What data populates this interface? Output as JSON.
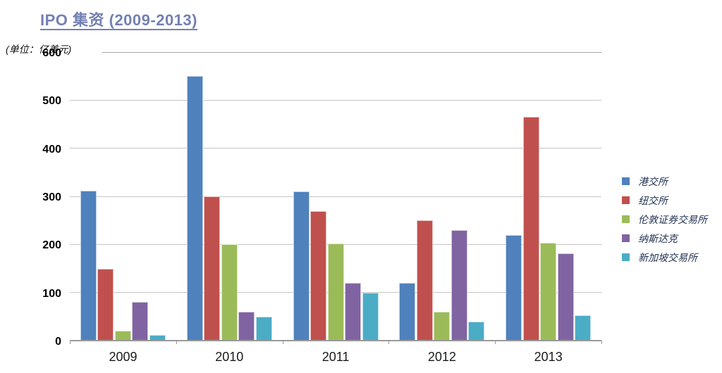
{
  "title": "IPO 集资 (2009-2013)",
  "unit_label": "(单位：亿美元)",
  "chart_data": {
    "type": "bar",
    "title": "IPO 集资 (2009-2013)",
    "unit": "亿美元",
    "categories": [
      "2009",
      "2010",
      "2011",
      "2012",
      "2013"
    ],
    "series": [
      {
        "name": "港交所",
        "color": "#4F81BD",
        "values": [
          312,
          550,
          310,
          120,
          220
        ]
      },
      {
        "name": "纽交所",
        "color": "#C0504D",
        "values": [
          150,
          300,
          270,
          250,
          466
        ]
      },
      {
        "name": "伦敦证券交易所",
        "color": "#9BBB59",
        "values": [
          20,
          200,
          202,
          60,
          203
        ]
      },
      {
        "name": "纳斯达克",
        "color": "#8064A2",
        "values": [
          80,
          60,
          120,
          230,
          182
        ]
      },
      {
        "name": "新加坡交易所",
        "color": "#4BACC6",
        "values": [
          11,
          50,
          100,
          40,
          52
        ]
      }
    ],
    "ylim": [
      0,
      600
    ],
    "ytick_step": 100,
    "yticks": [
      0,
      100,
      200,
      300,
      400,
      500,
      600
    ],
    "grid": true,
    "legend_position": "right"
  },
  "colors": {
    "title_text": "#7480B2",
    "legend_text": "#1F3050",
    "axis_line": "#9A9A9A",
    "gridline": "#C6C6C6",
    "tick_label": "#000000"
  }
}
